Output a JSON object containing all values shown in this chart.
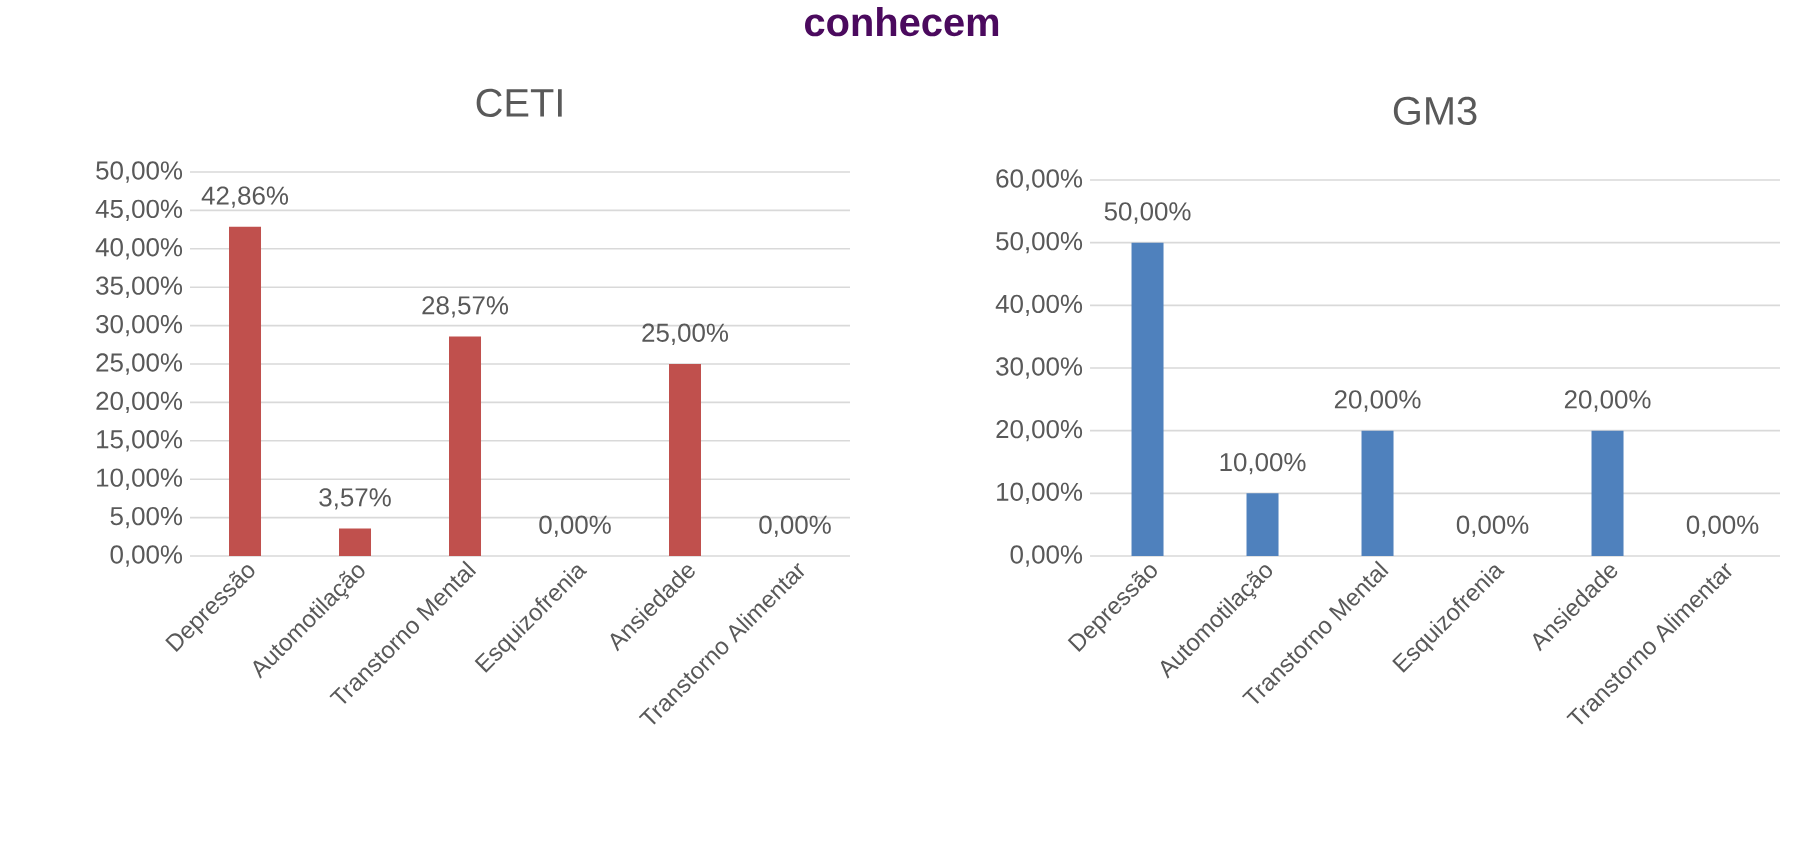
{
  "chart_data": [
    {
      "type": "bar",
      "title": "CETI",
      "annotations": [
        "conhecem"
      ],
      "categories": [
        "Depressão",
        "Automotilação",
        "Transtorno Mental",
        "Esquizofrenia",
        "Ansiedade",
        "Transtorno Alimentar"
      ],
      "values": [
        42.86,
        3.57,
        28.57,
        0,
        25,
        0
      ],
      "value_labels": [
        "42,86%",
        "3,57%",
        "28,57%",
        "0,00%",
        "25,00%",
        "0,00%"
      ],
      "color": "#c0504d",
      "ylim": [
        0,
        50
      ],
      "yticks": [
        {
          "value": 0,
          "label": "0,00%"
        },
        {
          "value": 5,
          "label": "5,00%"
        },
        {
          "value": 10,
          "label": "10,00%"
        },
        {
          "value": 15,
          "label": "15,00%"
        },
        {
          "value": 20,
          "label": "20,00%"
        },
        {
          "value": 25,
          "label": "25,00%"
        },
        {
          "value": 30,
          "label": "30,00%"
        },
        {
          "value": 35,
          "label": "35,00%"
        },
        {
          "value": 40,
          "label": "40,00%"
        },
        {
          "value": 45,
          "label": "45,00%"
        },
        {
          "value": 50,
          "label": "50,00%"
        }
      ],
      "grid": "y"
    },
    {
      "type": "bar",
      "title": "GM3",
      "categories": [
        "Depressão",
        "Automotilação",
        "Transtorno Mental",
        "Esquizofrenia",
        "Ansiedade",
        "Transtorno Alimentar"
      ],
      "values": [
        50,
        10,
        20,
        0,
        20,
        0
      ],
      "value_labels": [
        "50,00%",
        "10,00%",
        "20,00%",
        "0,00%",
        "20,00%",
        "0,00%"
      ],
      "color": "#4f81bd",
      "ylim": [
        0,
        60
      ],
      "yticks": [
        {
          "value": 0,
          "label": "0,00%"
        },
        {
          "value": 10,
          "label": "10,00%"
        },
        {
          "value": 20,
          "label": "20,00%"
        },
        {
          "value": 30,
          "label": "30,00%"
        },
        {
          "value": 40,
          "label": "40,00%"
        },
        {
          "value": 50,
          "label": "50,00%"
        },
        {
          "value": 60,
          "label": "60,00%"
        }
      ],
      "grid": "y"
    }
  ]
}
